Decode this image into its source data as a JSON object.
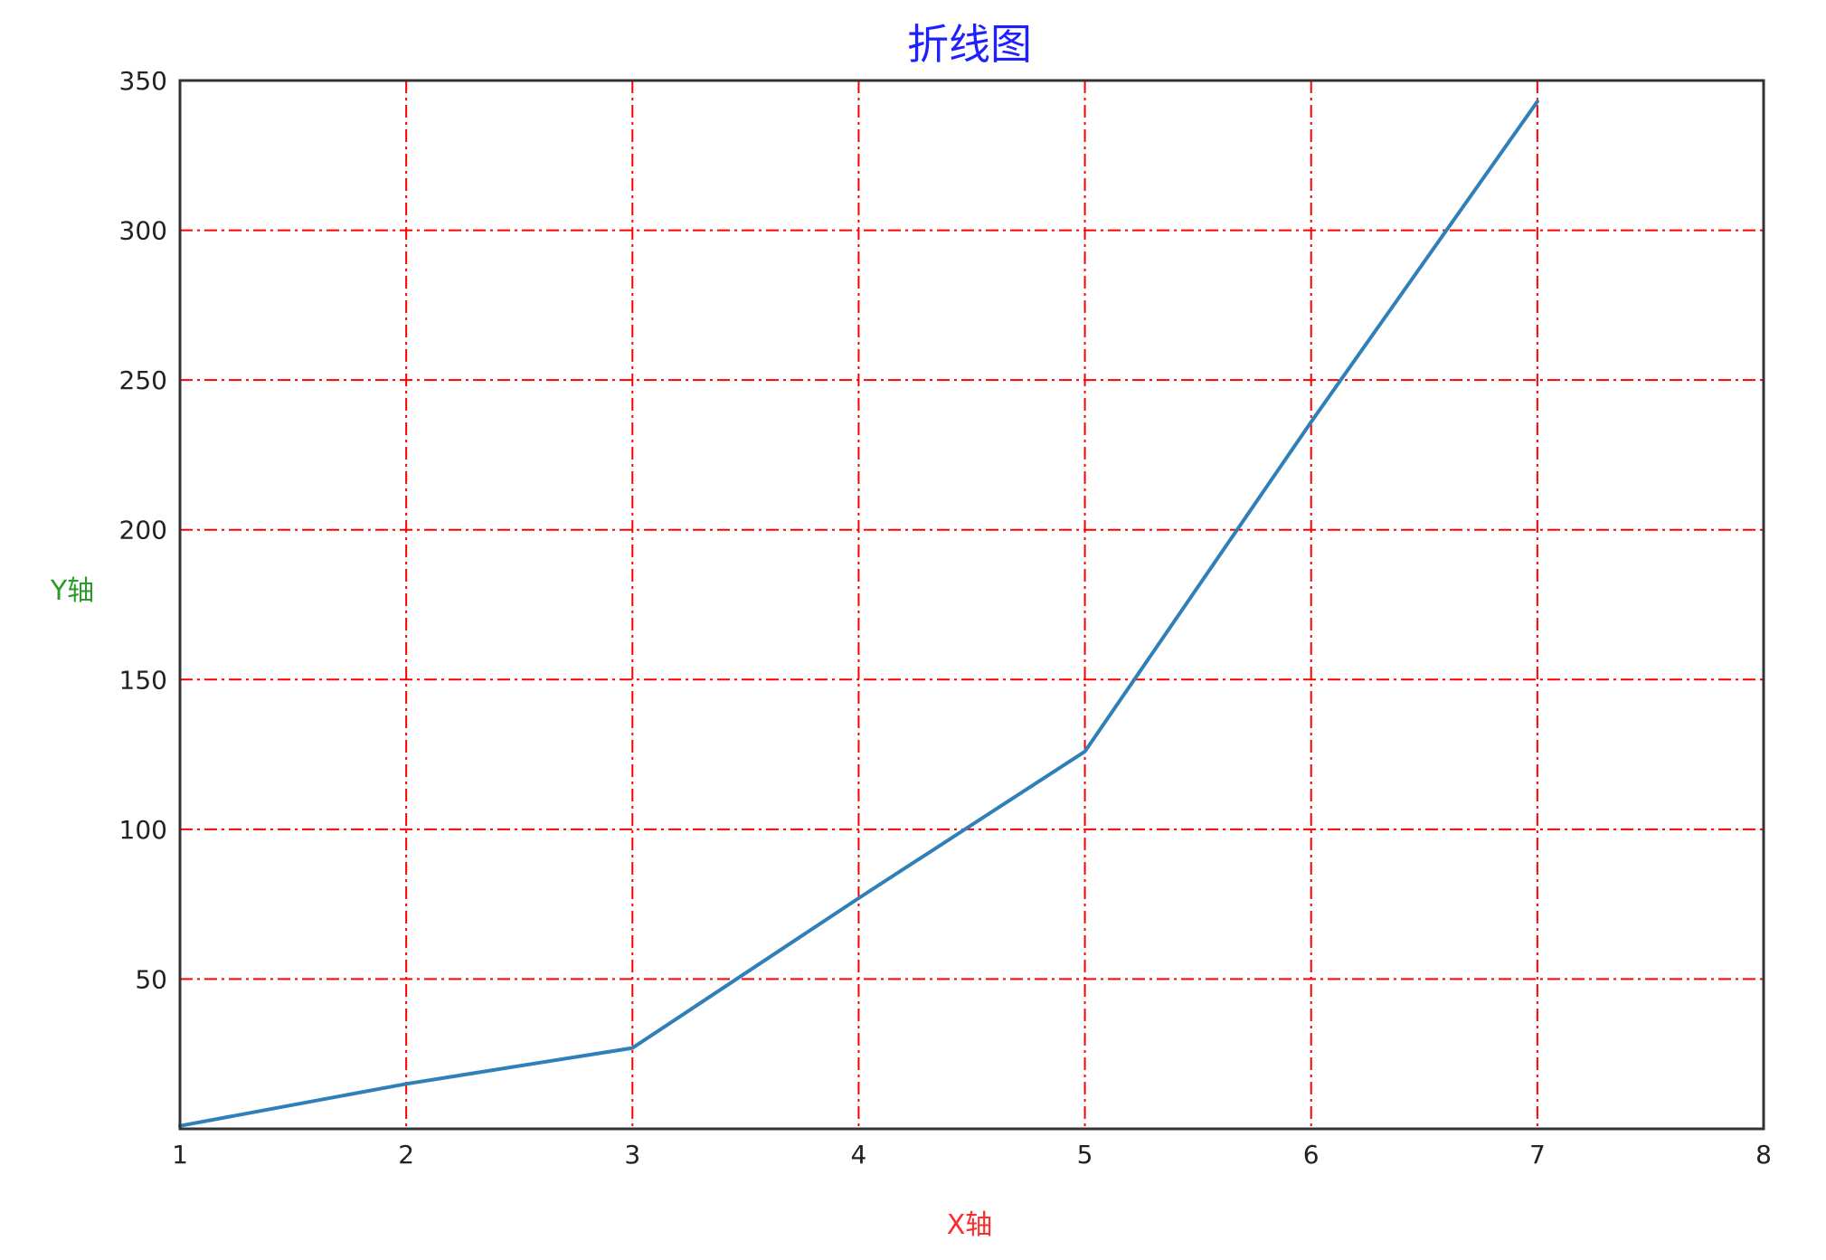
{
  "chart_data": {
    "type": "line",
    "title": "折线图",
    "xlabel": "X轴",
    "ylabel": "Y轴",
    "x": [
      1,
      2,
      3,
      4,
      5,
      6,
      7
    ],
    "series": [
      {
        "values": [
          1,
          15,
          27,
          77,
          126,
          236,
          343
        ]
      }
    ],
    "xlim": [
      1,
      8
    ],
    "ylim": [
      0,
      350
    ],
    "xticks": [
      1,
      2,
      3,
      4,
      5,
      6,
      7,
      8
    ],
    "yticks": [
      50,
      100,
      150,
      200,
      250,
      300,
      350
    ],
    "grid": true,
    "legend": "none"
  },
  "colors": {
    "title": "#1f1fff",
    "xlabel": "#ff2a2a",
    "ylabel": "#2a9a2a",
    "line": "#2f7fb8",
    "grid": "#ff0000",
    "axes": "#333333",
    "ticks": "#222222"
  }
}
